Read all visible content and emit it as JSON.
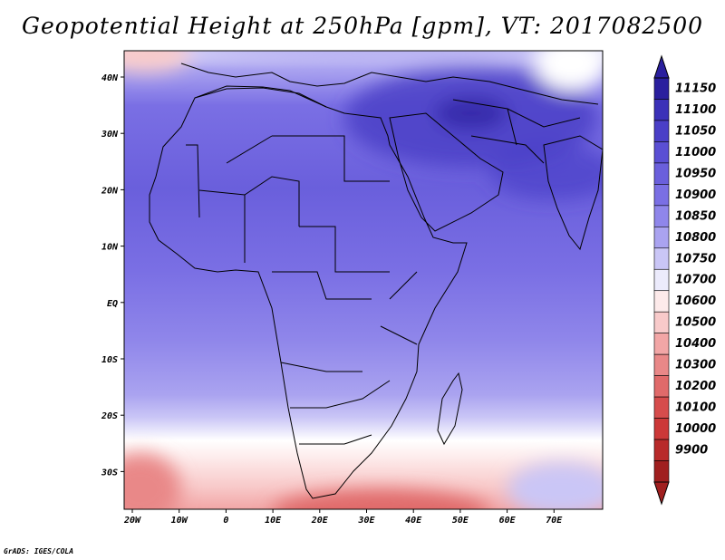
{
  "title": "Geopotential Height at 250hPa [gpm], VT: 2017082500",
  "credit": "GrADS: IGES/COLA",
  "lat_ticks": [
    "40N",
    "30N",
    "20N",
    "10N",
    "EQ",
    "10S",
    "20S",
    "30S"
  ],
  "lon_ticks": [
    "20W",
    "10W",
    "0",
    "10E",
    "20E",
    "30E",
    "40E",
    "50E",
    "60E",
    "70E"
  ],
  "colorbar": {
    "labels": [
      "11150",
      "11100",
      "11050",
      "11000",
      "10950",
      "10900",
      "10850",
      "10800",
      "10750",
      "10700",
      "10600",
      "10500",
      "10400",
      "10300",
      "10200",
      "10100",
      "10000",
      "9900"
    ],
    "colors": [
      "#2a1f9e",
      "#3b31b8",
      "#4a3fc7",
      "#5a4fd4",
      "#6a5fdc",
      "#7a6fe4",
      "#8f86ea",
      "#aaa3f0",
      "#cac6f6",
      "#ecebfc",
      "#fdeaea",
      "#f8caca",
      "#f2a6a6",
      "#e98888",
      "#e06a6a",
      "#d64c4c",
      "#cc3838",
      "#b82a2a",
      "#a01f1f"
    ]
  },
  "icons": {
    "arrow_up": "colorbar-top-arrow",
    "arrow_down": "colorbar-bottom-arrow"
  }
}
